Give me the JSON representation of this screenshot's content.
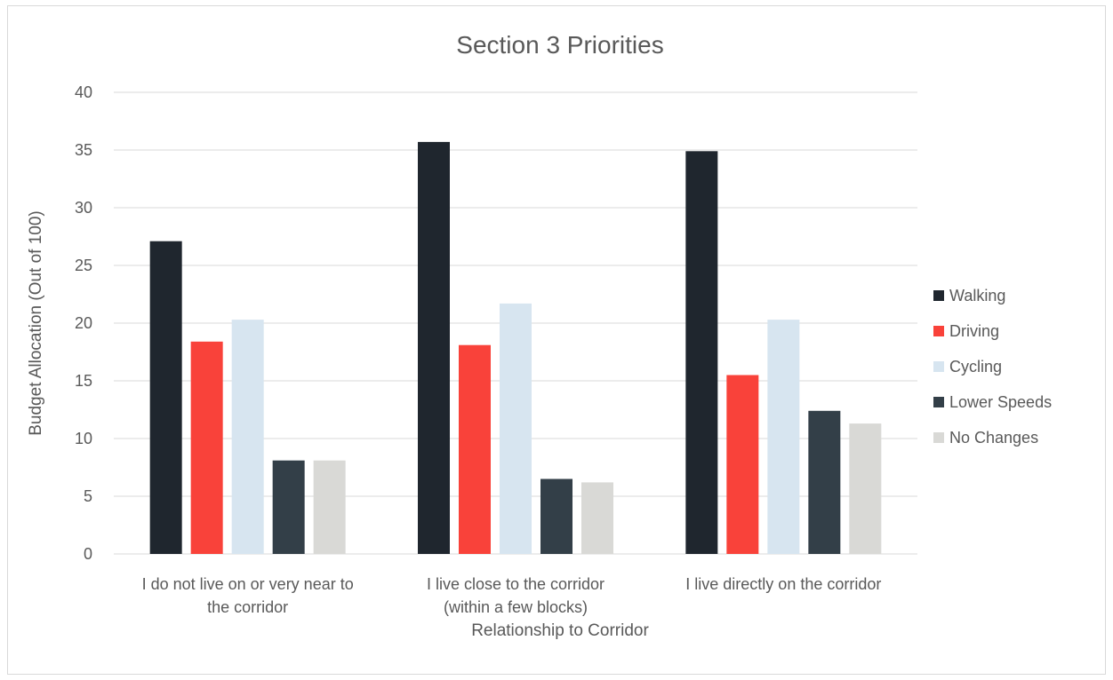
{
  "chart_data": {
    "type": "bar",
    "title": "Section 3 Priorities",
    "xlabel": "Relationship to Corridor",
    "ylabel": "Budget Allocation (Out of 100)",
    "ylim": [
      0,
      40
    ],
    "yticks": [
      "0",
      "5",
      "10",
      "15",
      "20",
      "25",
      "30",
      "35",
      "40"
    ],
    "grid": true,
    "legend_position": "right",
    "categories": [
      [
        "I do not live on or very near to",
        "the corridor"
      ],
      [
        "I live close to the corridor",
        "(within a few blocks)"
      ],
      [
        "I live directly on the corridor"
      ]
    ],
    "series": [
      {
        "name": "Walking",
        "color": "#1f262e",
        "values": [
          27.1,
          35.7,
          34.9
        ]
      },
      {
        "name": "Driving",
        "color": "#f9423a",
        "values": [
          18.4,
          18.1,
          15.5
        ]
      },
      {
        "name": "Cycling",
        "color": "#d7e5f0",
        "values": [
          20.3,
          21.7,
          20.3
        ]
      },
      {
        "name": "Lower Speeds",
        "color": "#333f48",
        "values": [
          8.1,
          6.5,
          12.4
        ]
      },
      {
        "name": "No Changes",
        "color": "#d9d9d6",
        "values": [
          8.1,
          6.2,
          11.3
        ]
      }
    ]
  }
}
